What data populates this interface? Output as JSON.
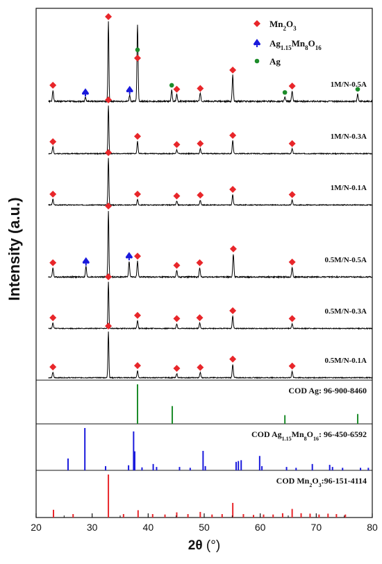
{
  "chart_data": {
    "type": "line",
    "xlabel_prefix": "2θ",
    "xlabel_unit": "(°)",
    "ylabel": "Intensity (a.u.)",
    "xlim": [
      20,
      80
    ],
    "xticks": [
      "20",
      "30",
      "40",
      "50",
      "60",
      "70",
      "80"
    ],
    "legend": [
      {
        "label": "Mn2O3",
        "base": "Mn",
        "sub1": "2",
        "mid": "O",
        "sub2": "3",
        "marker": "diamond",
        "color": "#e8262a"
      },
      {
        "label": "Ag1.15Mn8O16",
        "base": "Ag",
        "sub1": "1.15",
        "mid": "Mn",
        "sub2": "8",
        "mid2": "O",
        "sub3": "16",
        "marker": "spade",
        "color": "#1a1adc"
      },
      {
        "label": "Ag",
        "marker": "circle",
        "color": "#1c8c2a"
      }
    ],
    "series": [
      {
        "name": "1M/N-0.5A",
        "peaks": [
          {
            "x": 23.0,
            "h": 0.14,
            "marker": "diamond"
          },
          {
            "x": 28.8,
            "h": 0.05,
            "marker": "spade"
          },
          {
            "x": 32.9,
            "h": 1.0,
            "marker": "diamond"
          },
          {
            "x": 36.7,
            "h": 0.08,
            "marker": "spade"
          },
          {
            "x": 38.1,
            "h": 0.48,
            "marker": "diamond"
          },
          {
            "x": 38.1,
            "h": 0.48,
            "marker": "circle"
          },
          {
            "x": 44.2,
            "h": 0.14,
            "marker": "circle"
          },
          {
            "x": 45.1,
            "h": 0.09,
            "marker": "diamond"
          },
          {
            "x": 49.3,
            "h": 0.1,
            "marker": "diamond"
          },
          {
            "x": 55.1,
            "h": 0.33,
            "marker": "diamond"
          },
          {
            "x": 64.4,
            "h": 0.05,
            "marker": "circle"
          },
          {
            "x": 65.7,
            "h": 0.13,
            "marker": "diamond"
          },
          {
            "x": 77.4,
            "h": 0.09,
            "marker": "circle"
          }
        ]
      },
      {
        "name": "1M/N-0.3A",
        "peaks": [
          {
            "x": 23.0,
            "h": 0.14,
            "marker": "diamond"
          },
          {
            "x": 32.9,
            "h": 1.0,
            "marker": "diamond"
          },
          {
            "x": 38.1,
            "h": 0.25,
            "marker": "diamond"
          },
          {
            "x": 45.1,
            "h": 0.08,
            "marker": "diamond"
          },
          {
            "x": 49.3,
            "h": 0.1,
            "marker": "diamond"
          },
          {
            "x": 55.1,
            "h": 0.27,
            "marker": "diamond"
          },
          {
            "x": 65.7,
            "h": 0.1,
            "marker": "diamond"
          }
        ]
      },
      {
        "name": "1M/N-0.1A",
        "peaks": [
          {
            "x": 23.0,
            "h": 0.12,
            "marker": "diamond"
          },
          {
            "x": 32.9,
            "h": 1.0,
            "marker": "diamond"
          },
          {
            "x": 38.1,
            "h": 0.12,
            "marker": "diamond"
          },
          {
            "x": 45.1,
            "h": 0.08,
            "marker": "diamond"
          },
          {
            "x": 49.3,
            "h": 0.1,
            "marker": "diamond"
          },
          {
            "x": 55.1,
            "h": 0.22,
            "marker": "diamond"
          },
          {
            "x": 65.7,
            "h": 0.11,
            "marker": "diamond"
          }
        ]
      },
      {
        "name": "0.5M/N-0.5A",
        "peaks": [
          {
            "x": 23.0,
            "h": 0.14,
            "marker": "diamond"
          },
          {
            "x": 28.9,
            "h": 0.16,
            "marker": "spade"
          },
          {
            "x": 32.9,
            "h": 1.0,
            "marker": "diamond"
          },
          {
            "x": 36.6,
            "h": 0.24,
            "marker": "spade"
          },
          {
            "x": 38.1,
            "h": 0.24,
            "marker": "diamond"
          },
          {
            "x": 45.1,
            "h": 0.1,
            "marker": "diamond"
          },
          {
            "x": 49.2,
            "h": 0.14,
            "marker": "diamond"
          },
          {
            "x": 55.2,
            "h": 0.35,
            "marker": "diamond"
          },
          {
            "x": 65.7,
            "h": 0.15,
            "marker": "diamond"
          }
        ]
      },
      {
        "name": "0.5M/N-0.3A",
        "peaks": [
          {
            "x": 23.0,
            "h": 0.12,
            "marker": "diamond"
          },
          {
            "x": 32.9,
            "h": 1.0,
            "marker": "diamond"
          },
          {
            "x": 38.1,
            "h": 0.17,
            "marker": "diamond"
          },
          {
            "x": 45.1,
            "h": 0.1,
            "marker": "diamond"
          },
          {
            "x": 49.2,
            "h": 0.12,
            "marker": "diamond"
          },
          {
            "x": 55.1,
            "h": 0.27,
            "marker": "diamond"
          },
          {
            "x": 65.7,
            "h": 0.1,
            "marker": "diamond"
          }
        ]
      },
      {
        "name": "0.5M/N-0.1A",
        "peaks": [
          {
            "x": 23.0,
            "h": 0.12,
            "marker": "diamond"
          },
          {
            "x": 32.9,
            "h": 1.0,
            "marker": "diamond"
          },
          {
            "x": 38.1,
            "h": 0.15,
            "marker": "diamond"
          },
          {
            "x": 45.1,
            "h": 0.09,
            "marker": "diamond"
          },
          {
            "x": 49.3,
            "h": 0.11,
            "marker": "diamond"
          },
          {
            "x": 55.1,
            "h": 0.29,
            "marker": "diamond"
          },
          {
            "x": 65.7,
            "h": 0.14,
            "marker": "diamond"
          }
        ]
      }
    ],
    "references": [
      {
        "name": "COD Ag: 96-900-8460",
        "parts": [
          {
            "t": "COD Ag: 96-900-8460"
          }
        ],
        "color": "#1c8c2a",
        "sticks": [
          [
            38.1,
            1.0
          ],
          [
            44.3,
            0.45
          ],
          [
            64.4,
            0.22
          ],
          [
            77.4,
            0.25
          ]
        ]
      },
      {
        "name": "COD Ag1.15Mn8O16: 96-450-6592",
        "parts": [
          {
            "t": "COD Ag"
          },
          {
            "t": "1.15",
            "sub": true
          },
          {
            "t": "Mn"
          },
          {
            "t": "8",
            "sub": true
          },
          {
            "t": "O"
          },
          {
            "t": "16",
            "sub": true
          },
          {
            "t": ": 96-450-6592"
          }
        ],
        "color": "#1a1adc",
        "sticks": [
          [
            25.7,
            0.28
          ],
          [
            28.7,
            1.0
          ],
          [
            32.4,
            0.1
          ],
          [
            36.5,
            0.12
          ],
          [
            37.4,
            0.92
          ],
          [
            37.6,
            0.45
          ],
          [
            38.9,
            0.07
          ],
          [
            40.9,
            0.15
          ],
          [
            41.5,
            0.08
          ],
          [
            45.6,
            0.08
          ],
          [
            47.5,
            0.06
          ],
          [
            49.8,
            0.46
          ],
          [
            50.2,
            0.1
          ],
          [
            55.7,
            0.2
          ],
          [
            56.1,
            0.22
          ],
          [
            56.6,
            0.24
          ],
          [
            59.9,
            0.34
          ],
          [
            60.3,
            0.1
          ],
          [
            64.7,
            0.08
          ],
          [
            66.4,
            0.06
          ],
          [
            69.3,
            0.15
          ],
          [
            72.4,
            0.13
          ],
          [
            72.9,
            0.08
          ],
          [
            74.7,
            0.06
          ],
          [
            77.9,
            0.06
          ],
          [
            79.3,
            0.06
          ]
        ]
      },
      {
        "name": "COD Mn2O3:96-151-4114",
        "parts": [
          {
            "t": "COD Mn"
          },
          {
            "t": "2",
            "sub": true
          },
          {
            "t": "O"
          },
          {
            "t": "3",
            "sub": true
          },
          {
            "t": ":96-151-4114"
          }
        ],
        "color": "#e8262a",
        "sticks": [
          [
            23.1,
            0.18
          ],
          [
            26.6,
            0.08
          ],
          [
            32.9,
            1.0
          ],
          [
            35.6,
            0.08
          ],
          [
            38.2,
            0.17
          ],
          [
            40.8,
            0.08
          ],
          [
            43.0,
            0.07
          ],
          [
            45.1,
            0.12
          ],
          [
            47.1,
            0.08
          ],
          [
            49.3,
            0.13
          ],
          [
            51.4,
            0.07
          ],
          [
            53.2,
            0.08
          ],
          [
            55.1,
            0.34
          ],
          [
            57.0,
            0.08
          ],
          [
            58.8,
            0.06
          ],
          [
            60.6,
            0.07
          ],
          [
            62.3,
            0.07
          ],
          [
            64.0,
            0.1
          ],
          [
            65.7,
            0.2
          ],
          [
            67.3,
            0.1
          ],
          [
            68.9,
            0.09
          ],
          [
            70.5,
            0.07
          ],
          [
            72.1,
            0.09
          ],
          [
            73.6,
            0.08
          ],
          [
            75.2,
            0.07
          ]
        ]
      }
    ]
  }
}
